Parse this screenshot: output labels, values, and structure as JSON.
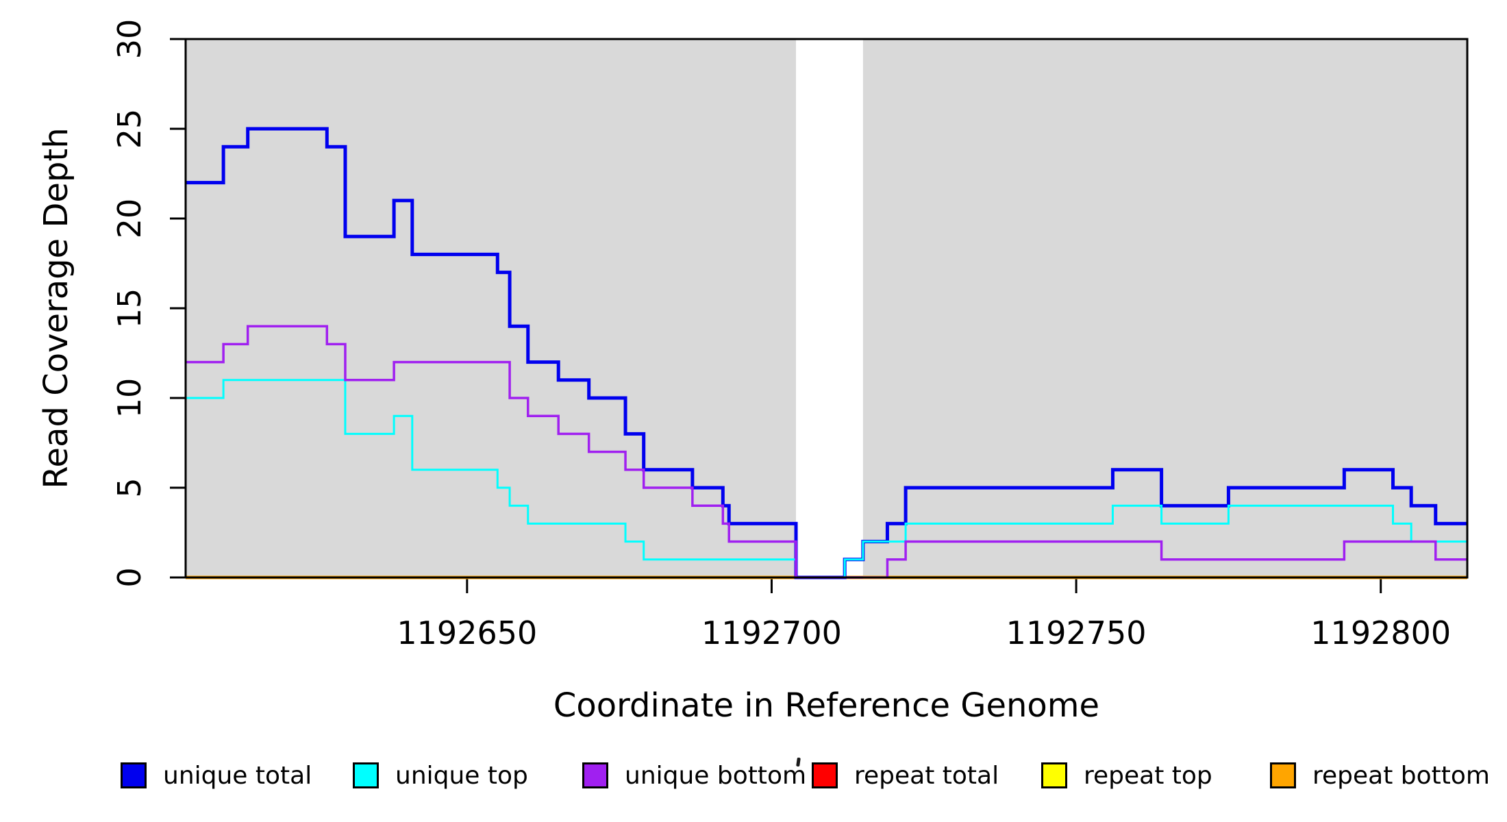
{
  "chart_data": {
    "type": "line",
    "subtype": "step-coverage-plot",
    "title": "",
    "xlabel": "Coordinate in Reference Genome",
    "ylabel": "Read Coverage Depth",
    "xlim": [
      1192603.8,
      1192814.2
    ],
    "ylim": [
      0,
      30
    ],
    "grid": false,
    "frame_color": "#000000",
    "band_color": "#d9d9d9",
    "xticks": [
      {
        "v": 1192650,
        "label": "1192650"
      },
      {
        "v": 1192700,
        "label": "1192700"
      },
      {
        "v": 1192750,
        "label": "1192750"
      },
      {
        "v": 1192800,
        "label": "1192800"
      }
    ],
    "yticks": [
      {
        "v": 0,
        "label": "0"
      },
      {
        "v": 5,
        "label": "5"
      },
      {
        "v": 10,
        "label": "10"
      },
      {
        "v": 15,
        "label": "15"
      },
      {
        "v": 20,
        "label": "20"
      },
      {
        "v": 25,
        "label": "25"
      },
      {
        "v": 30,
        "label": "30"
      }
    ],
    "background_bands": [
      {
        "x0": 1192603.8,
        "x1": 1192704,
        "color": "#d9d9d9"
      },
      {
        "x0": 1192715,
        "x1": 1192814.2,
        "color": "#d9d9d9"
      }
    ],
    "gap_region": {
      "x0": 1192704,
      "x1": 1192715
    },
    "artifact_baseline_segment": {
      "x0": 1192712,
      "x1": 1192719,
      "v": 0,
      "color": "#f08080"
    },
    "series": [
      {
        "name": "repeat total",
        "color": "#ff0000",
        "width": 3.5,
        "steps": [
          [
            1192603.8,
            0
          ]
        ]
      },
      {
        "name": "repeat top",
        "color": "#ffff00",
        "width": 3.5,
        "steps": [
          [
            1192603.8,
            0
          ]
        ]
      },
      {
        "name": "repeat bottom",
        "color": "#ffa500",
        "width": 5,
        "steps": [
          [
            1192603.8,
            0
          ]
        ]
      },
      {
        "name": "unique total",
        "color": "#0000ee",
        "width": 5,
        "steps": [
          [
            1192603.8,
            22
          ],
          [
            1192610,
            24
          ],
          [
            1192614,
            25
          ],
          [
            1192627,
            24
          ],
          [
            1192630,
            19
          ],
          [
            1192638,
            21
          ],
          [
            1192641,
            18
          ],
          [
            1192655,
            17
          ],
          [
            1192657,
            14
          ],
          [
            1192660,
            12
          ],
          [
            1192665,
            11
          ],
          [
            1192670,
            10
          ],
          [
            1192676,
            8
          ],
          [
            1192679,
            6
          ],
          [
            1192687,
            5
          ],
          [
            1192692,
            4
          ],
          [
            1192693,
            3
          ],
          [
            1192704,
            0
          ],
          [
            1192712,
            1
          ],
          [
            1192715,
            2
          ],
          [
            1192719,
            3
          ],
          [
            1192722,
            5
          ],
          [
            1192756,
            6
          ],
          [
            1192764,
            4
          ],
          [
            1192775,
            5
          ],
          [
            1192794,
            6
          ],
          [
            1192802,
            5
          ],
          [
            1192805,
            4
          ],
          [
            1192809,
            3
          ]
        ]
      },
      {
        "name": "unique top",
        "color": "#00ffff",
        "width": 3,
        "steps": [
          [
            1192603.8,
            10
          ],
          [
            1192610,
            11
          ],
          [
            1192630,
            8
          ],
          [
            1192638,
            9
          ],
          [
            1192641,
            6
          ],
          [
            1192655,
            5
          ],
          [
            1192657,
            4
          ],
          [
            1192660,
            3
          ],
          [
            1192676,
            2
          ],
          [
            1192679,
            1
          ],
          [
            1192704,
            0
          ],
          [
            1192712,
            1
          ],
          [
            1192715,
            2
          ],
          [
            1192722,
            3
          ],
          [
            1192756,
            4
          ],
          [
            1192764,
            3
          ],
          [
            1192775,
            4
          ],
          [
            1192802,
            3
          ],
          [
            1192805,
            2
          ]
        ]
      },
      {
        "name": "unique bottom",
        "color": "#a020f0",
        "width": 3.5,
        "steps": [
          [
            1192603.8,
            12
          ],
          [
            1192610,
            13
          ],
          [
            1192614,
            14
          ],
          [
            1192627,
            13
          ],
          [
            1192630,
            11
          ],
          [
            1192638,
            12
          ],
          [
            1192657,
            10
          ],
          [
            1192660,
            9
          ],
          [
            1192665,
            8
          ],
          [
            1192670,
            7
          ],
          [
            1192676,
            6
          ],
          [
            1192679,
            5
          ],
          [
            1192687,
            4
          ],
          [
            1192692,
            3
          ],
          [
            1192693,
            2
          ],
          [
            1192704,
            0
          ],
          [
            1192715,
            null
          ],
          [
            1192719,
            1
          ],
          [
            1192722,
            2
          ],
          [
            1192764,
            1
          ],
          [
            1192794,
            2
          ],
          [
            1192809,
            1
          ]
        ]
      }
    ],
    "legend": [
      {
        "label": "unique total",
        "color": "#0000ee"
      },
      {
        "label": "unique top",
        "color": "#00ffff"
      },
      {
        "label": "unique bottom",
        "color": "#a020f0"
      },
      {
        "label": "repeat total",
        "color": "#ff0000"
      },
      {
        "label": "repeat top",
        "color": "#ffff00"
      },
      {
        "label": "repeat bottom",
        "color": "#ffa500"
      }
    ],
    "legend_position": "bottom"
  }
}
